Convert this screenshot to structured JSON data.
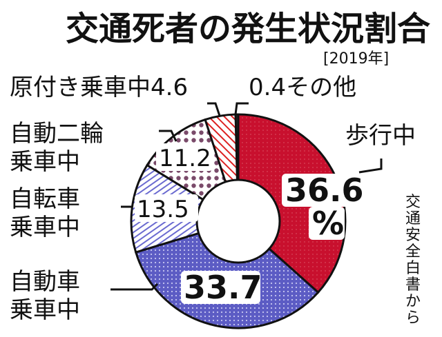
{
  "chart_data": {
    "type": "pie",
    "title": "交通死者の発生状況割合",
    "subtitle": "[2019年]",
    "source": "交通安全白書から",
    "slices": [
      {
        "label": "歩行中",
        "value": 36.6,
        "value_text": "36.6",
        "unit_text": "%",
        "color": "#c8102e"
      },
      {
        "label": "自動車乗車中",
        "value": 33.7,
        "value_text": "33.7",
        "color": "#6f6fd0"
      },
      {
        "label": "自転車乗車中",
        "value": 13.5,
        "value_text": "13.5",
        "color": "#8a8ad8"
      },
      {
        "label": "自動二輪乗車中",
        "value": 11.2,
        "value_text": "11.2",
        "color": "#7a4a6a"
      },
      {
        "label": "原付き乗車中",
        "value": 4.6,
        "value_text": "4.6",
        "color": "#d22"
      },
      {
        "label": "その他",
        "value": 0.4,
        "value_text": "0.4",
        "color": "#444"
      }
    ]
  },
  "labels": {
    "walking": "歩行中",
    "car_line1": "自動車",
    "car_line2": "乗車中",
    "bike_line1": "自転車",
    "bike_line2": "乗車中",
    "moto_line1": "自動二輪",
    "moto_line2": "乗車中",
    "moped": "原付き乗車中4.6",
    "other": "0.4その他",
    "source_chars": [
      "交",
      "通",
      "安",
      "全",
      "白",
      "書",
      "か",
      "ら"
    ]
  }
}
